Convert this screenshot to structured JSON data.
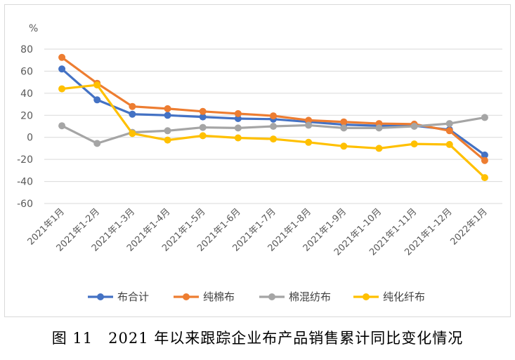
{
  "chart_data": {
    "type": "line",
    "title": "",
    "ylabel": "%",
    "xlabel": "",
    "ylim": [
      -60,
      80
    ],
    "yticks": [
      80,
      60,
      40,
      20,
      0,
      -20,
      -40,
      -60
    ],
    "grid": true,
    "legend_position": "bottom",
    "categories": [
      "2021年1月",
      "2021年1-2月",
      "2021年1-3月",
      "2021年1-4月",
      "2021年1-5月",
      "2021年1-6月",
      "2021年1-7月",
      "2021年1-8月",
      "2021年1-9月",
      "2021年1-10月",
      "2021年1-11月",
      "2021年1-12月",
      "2022年1月"
    ],
    "series": [
      {
        "name": "布合计",
        "color": "#4472c4",
        "values": [
          62,
          34,
          21,
          20,
          18.5,
          17,
          16.5,
          14,
          11.5,
          10.5,
          10.5,
          7,
          -16
        ]
      },
      {
        "name": "纯棉布",
        "color": "#ed7d31",
        "values": [
          72.5,
          49,
          28,
          26,
          23.5,
          21.5,
          19.5,
          15.5,
          14,
          12.5,
          12,
          6,
          -21
        ]
      },
      {
        "name": "棉混纺布",
        "color": "#a5a5a5",
        "values": [
          10.5,
          -5.5,
          4.5,
          6,
          9,
          8.5,
          10,
          11,
          8.5,
          8.5,
          10,
          12.5,
          18
        ]
      },
      {
        "name": "纯化纤布",
        "color": "#ffc000",
        "values": [
          44,
          47.5,
          3.5,
          -2.5,
          1.5,
          -0.5,
          -1.5,
          -4.5,
          -8,
          -10,
          -6,
          -6.5,
          -36.5
        ]
      }
    ]
  },
  "caption": "图 11　2021 年以来跟踪企业布产品销售累计同比变化情况"
}
